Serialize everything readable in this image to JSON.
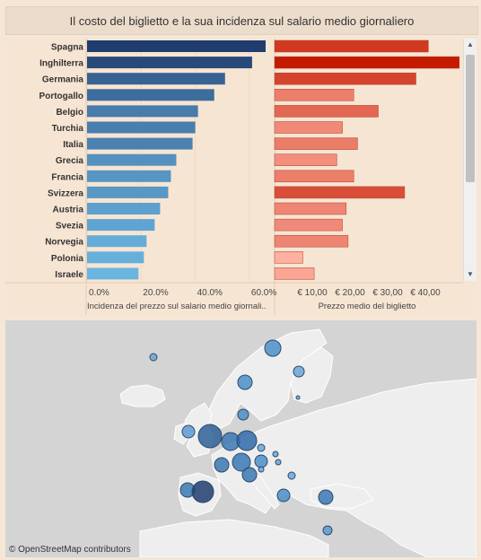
{
  "title": "Il costo del biglietto e la sua incidenza sul salario medio giornaliero",
  "attribution": "© OpenStreetMap contributors",
  "chart_data": [
    {
      "type": "bar",
      "orientation": "horizontal",
      "categories": [
        "Spagna",
        "Inghilterra",
        "Germania",
        "Portogallo",
        "Belgio",
        "Turchia",
        "Italia",
        "Grecia",
        "Francia",
        "Svizzera",
        "Austria",
        "Svezia",
        "Norvegia",
        "Polonia",
        "Israele"
      ],
      "values": [
        0.66,
        0.61,
        0.51,
        0.47,
        0.41,
        0.4,
        0.39,
        0.33,
        0.31,
        0.3,
        0.27,
        0.25,
        0.22,
        0.21,
        0.19
      ],
      "xlabel": "Incidenza del prezzo sul salario medio giornali..",
      "ticks": [
        "0.0%",
        "20.0%",
        "40.0%",
        "60.0%"
      ],
      "xlim": [
        0,
        0.66
      ],
      "color_scale": [
        "#1f3d6e",
        "#6ab4e0"
      ]
    },
    {
      "type": "bar",
      "orientation": "horizontal",
      "categories": [
        "Spagna",
        "Inghilterra",
        "Germania",
        "Portogallo",
        "Belgio",
        "Turchia",
        "Italia",
        "Grecia",
        "Francia",
        "Svizzera",
        "Austria",
        "Svezia",
        "Norvegia",
        "Polonia",
        "Israele"
      ],
      "values": [
        40.8,
        49.0,
        37.5,
        21.0,
        27.5,
        18.0,
        22.0,
        16.5,
        21.0,
        34.5,
        19.0,
        18.0,
        19.5,
        7.5,
        10.5
      ],
      "xlabel": "Prezzo medio del biglietto",
      "ticks": [
        "€ 10,00",
        "€ 20,00",
        "€ 30,00",
        "€ 40,00"
      ],
      "xlim": [
        0,
        50
      ],
      "color_scale": [
        "#ffb0a0",
        "#c41a00"
      ]
    }
  ]
}
